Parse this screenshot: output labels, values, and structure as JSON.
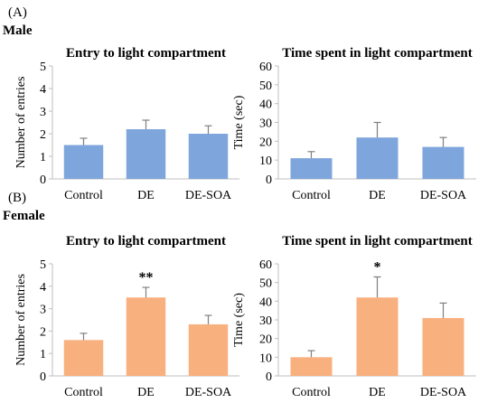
{
  "figure": {
    "panel_a": "(A)",
    "panel_b": "(B)",
    "male_label": "Male",
    "female_label": "Female"
  },
  "colors": {
    "male_bar": "#7ea6dc",
    "female_bar": "#f9b07f",
    "axis": "#bfbfbf",
    "error": "#7f7f7f"
  },
  "chart_data": [
    {
      "type": "bar",
      "group": "Male",
      "title": "Entry to light compartment",
      "ylabel": "Number of entries",
      "xlabel": "",
      "categories": [
        "Control",
        "DE",
        "DE-SOA"
      ],
      "values": [
        1.5,
        2.2,
        2.0
      ],
      "errors": [
        0.3,
        0.4,
        0.35
      ],
      "significance": [
        "",
        "",
        ""
      ],
      "ylim": [
        0,
        5
      ],
      "yticks": [
        0,
        1,
        2,
        3,
        4,
        5
      ],
      "grid": false,
      "color": "#7ea6dc"
    },
    {
      "type": "bar",
      "group": "Male",
      "title": "Time spent in light compartment",
      "ylabel": "Time (sec)",
      "xlabel": "",
      "categories": [
        "Control",
        "DE",
        "DE-SOA"
      ],
      "values": [
        11,
        22,
        17
      ],
      "errors": [
        3.5,
        8,
        5
      ],
      "significance": [
        "",
        "",
        ""
      ],
      "ylim": [
        0,
        60
      ],
      "yticks": [
        0,
        10,
        20,
        30,
        40,
        50,
        60
      ],
      "grid": false,
      "color": "#7ea6dc"
    },
    {
      "type": "bar",
      "group": "Female",
      "title": "Entry to light compartment",
      "ylabel": "Number of entries",
      "xlabel": "",
      "categories": [
        "Control",
        "DE",
        "DE-SOA"
      ],
      "values": [
        1.6,
        3.5,
        2.3
      ],
      "errors": [
        0.3,
        0.45,
        0.4
      ],
      "significance": [
        "",
        "**",
        ""
      ],
      "ylim": [
        0,
        5
      ],
      "yticks": [
        0,
        1,
        2,
        3,
        4,
        5
      ],
      "grid": false,
      "color": "#f9b07f"
    },
    {
      "type": "bar",
      "group": "Female",
      "title": "Time spent in light compartment",
      "ylabel": "Time (sec)",
      "xlabel": "",
      "categories": [
        "Control",
        "DE",
        "DE-SOA"
      ],
      "values": [
        10,
        42,
        31
      ],
      "errors": [
        3.5,
        11,
        8
      ],
      "significance": [
        "",
        "*",
        ""
      ],
      "ylim": [
        0,
        60
      ],
      "yticks": [
        0,
        10,
        20,
        30,
        40,
        50,
        60
      ],
      "grid": false,
      "color": "#f9b07f"
    }
  ]
}
